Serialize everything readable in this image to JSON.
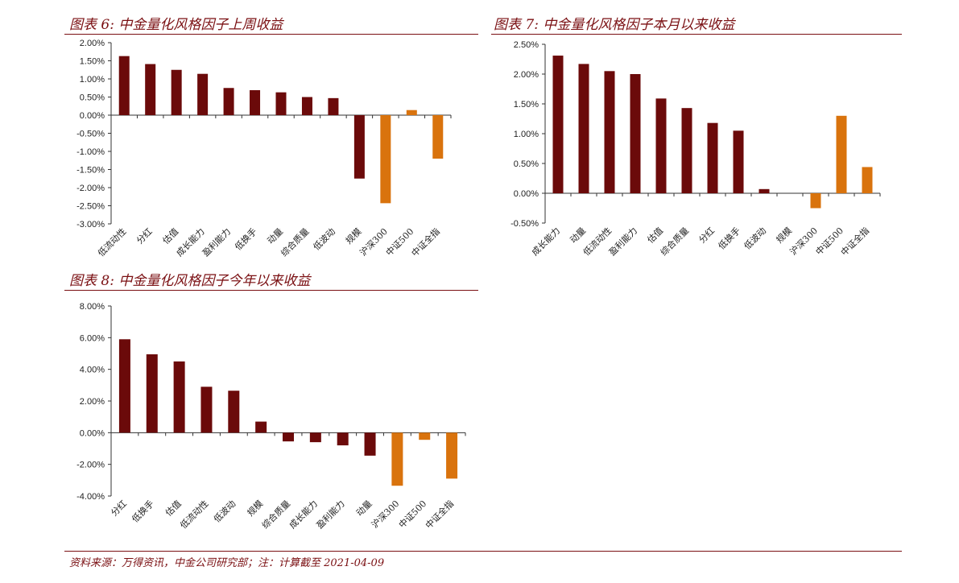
{
  "colors": {
    "factor": "#6b0a0a",
    "index": "#d9730d",
    "title": "#7a0f12"
  },
  "chart_data": [
    {
      "type": "bar",
      "title": "图表 6:  中金量化风格因子上周收益",
      "categories": [
        "低流动性",
        "分红",
        "估值",
        "成长能力",
        "盈利能力",
        "低换手",
        "动量",
        "综合质量",
        "低波动",
        "规模",
        "沪深300",
        "中证500",
        "中证全指"
      ],
      "values": [
        1.63,
        1.41,
        1.25,
        1.14,
        0.75,
        0.69,
        0.63,
        0.5,
        0.47,
        -1.75,
        -2.43,
        0.14,
        -1.2
      ],
      "bar_kind": [
        "factor",
        "factor",
        "factor",
        "factor",
        "factor",
        "factor",
        "factor",
        "factor",
        "factor",
        "factor",
        "index",
        "index",
        "index"
      ],
      "yticks": [
        "2.00%",
        "1.50%",
        "1.00%",
        "0.50%",
        "0.00%",
        "-0.50%",
        "-1.00%",
        "-1.50%",
        "-2.00%",
        "-2.50%",
        "-3.00%"
      ],
      "ylim": [
        -3.0,
        2.0
      ]
    },
    {
      "type": "bar",
      "title": "图表 7:  中金量化风格因子本月以来收益",
      "categories": [
        "成长能力",
        "动量",
        "低流动性",
        "盈利能力",
        "估值",
        "综合质量",
        "分红",
        "低换手",
        "低波动",
        "规模",
        "沪深300",
        "中证500",
        "中证全指"
      ],
      "values": [
        2.31,
        2.17,
        2.05,
        2.0,
        1.59,
        1.43,
        1.18,
        1.05,
        0.07,
        0.0,
        -0.25,
        1.3,
        0.44
      ],
      "bar_kind": [
        "factor",
        "factor",
        "factor",
        "factor",
        "factor",
        "factor",
        "factor",
        "factor",
        "factor",
        "factor",
        "index",
        "index",
        "index"
      ],
      "yticks": [
        "2.50%",
        "2.00%",
        "1.50%",
        "1.00%",
        "0.50%",
        "0.00%",
        "-0.50%"
      ],
      "ylim": [
        -0.5,
        2.5
      ]
    },
    {
      "type": "bar",
      "title": "图表 8:  中金量化风格因子今年以来收益",
      "categories": [
        "分红",
        "低换手",
        "估值",
        "低流动性",
        "低波动",
        "规模",
        "综合质量",
        "成长能力",
        "盈利能力",
        "动量",
        "沪深300",
        "中证500",
        "中证全指"
      ],
      "values": [
        5.9,
        4.95,
        4.5,
        2.9,
        2.65,
        0.7,
        -0.55,
        -0.6,
        -0.8,
        -1.45,
        -3.35,
        -0.45,
        -2.9
      ],
      "bar_kind": [
        "factor",
        "factor",
        "factor",
        "factor",
        "factor",
        "factor",
        "factor",
        "factor",
        "factor",
        "factor",
        "index",
        "index",
        "index"
      ],
      "yticks": [
        "8.00%",
        "6.00%",
        "4.00%",
        "2.00%",
        "0.00%",
        "-2.00%",
        "-4.00%"
      ],
      "ylim": [
        -4.0,
        8.0
      ]
    }
  ],
  "footer": "资料来源：万得资讯，中金公司研究部；注：计算截至 2021-04-09"
}
